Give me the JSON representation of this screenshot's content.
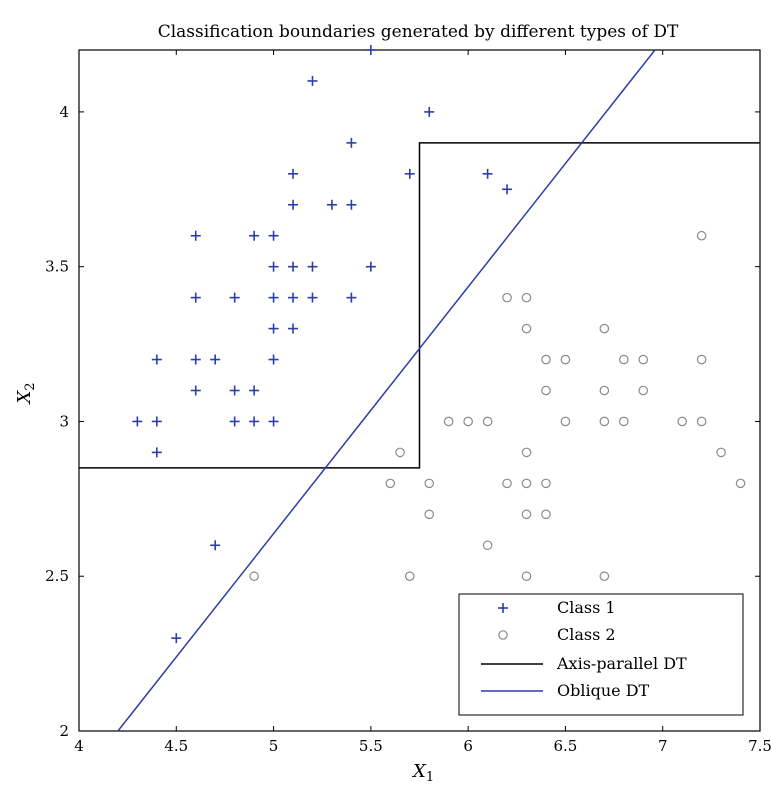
{
  "chart_data": {
    "type": "scatter",
    "title": "Classification boundaries generated by different types of DT",
    "xlabel": "X",
    "xlabel_sub": "1",
    "ylabel": "X",
    "ylabel_sub": "2",
    "xlim": [
      4,
      7.5
    ],
    "ylim": [
      2,
      4.2
    ],
    "xticks": [
      4,
      4.5,
      5,
      5.5,
      6,
      6.5,
      7,
      7.5
    ],
    "xtick_labels": [
      "4",
      "4.5",
      "5",
      "5.5",
      "6",
      "6.5",
      "7",
      "7.5"
    ],
    "yticks": [
      2,
      2.5,
      3,
      3.5,
      4
    ],
    "ytick_labels": [
      "2",
      "2.5",
      "3",
      "3.5",
      "4"
    ],
    "legend_position": "bottom-right",
    "colors": {
      "class1": "#2a3fa8",
      "class2": "#8a8a8a",
      "axis_parallel": "#000000",
      "oblique": "#2a3fa8"
    },
    "series": [
      {
        "name": "Class 1",
        "marker": "plus",
        "points": [
          [
            5.5,
            4.2
          ],
          [
            5.2,
            4.1
          ],
          [
            5.8,
            4.0
          ],
          [
            5.4,
            3.9
          ],
          [
            5.7,
            3.8
          ],
          [
            5.1,
            3.8
          ],
          [
            6.1,
            3.8
          ],
          [
            6.2,
            3.75
          ],
          [
            5.1,
            3.7
          ],
          [
            5.3,
            3.7
          ],
          [
            5.4,
            3.7
          ],
          [
            4.6,
            3.6
          ],
          [
            4.9,
            3.6
          ],
          [
            5.0,
            3.6
          ],
          [
            5.0,
            3.5
          ],
          [
            5.1,
            3.5
          ],
          [
            5.2,
            3.5
          ],
          [
            5.5,
            3.5
          ],
          [
            4.6,
            3.4
          ],
          [
            4.8,
            3.4
          ],
          [
            5.0,
            3.4
          ],
          [
            5.1,
            3.4
          ],
          [
            5.2,
            3.4
          ],
          [
            5.4,
            3.4
          ],
          [
            5.0,
            3.3
          ],
          [
            5.1,
            3.3
          ],
          [
            4.4,
            3.2
          ],
          [
            4.6,
            3.2
          ],
          [
            4.7,
            3.2
          ],
          [
            5.0,
            3.2
          ],
          [
            4.6,
            3.1
          ],
          [
            4.8,
            3.1
          ],
          [
            4.9,
            3.1
          ],
          [
            4.3,
            3.0
          ],
          [
            4.4,
            3.0
          ],
          [
            4.8,
            3.0
          ],
          [
            4.9,
            3.0
          ],
          [
            5.0,
            3.0
          ],
          [
            4.4,
            2.9
          ],
          [
            4.7,
            2.6
          ],
          [
            4.5,
            2.3
          ]
        ]
      },
      {
        "name": "Class 2",
        "marker": "circle",
        "points": [
          [
            7.2,
            3.6
          ],
          [
            6.2,
            3.4
          ],
          [
            6.3,
            3.4
          ],
          [
            6.3,
            3.3
          ],
          [
            6.7,
            3.3
          ],
          [
            6.4,
            3.2
          ],
          [
            6.5,
            3.2
          ],
          [
            6.8,
            3.2
          ],
          [
            6.9,
            3.2
          ],
          [
            7.2,
            3.2
          ],
          [
            6.4,
            3.1
          ],
          [
            6.7,
            3.1
          ],
          [
            6.9,
            3.1
          ],
          [
            5.9,
            3.0
          ],
          [
            6.0,
            3.0
          ],
          [
            6.1,
            3.0
          ],
          [
            6.5,
            3.0
          ],
          [
            6.7,
            3.0
          ],
          [
            6.8,
            3.0
          ],
          [
            7.1,
            3.0
          ],
          [
            7.2,
            3.0
          ],
          [
            5.65,
            2.9
          ],
          [
            6.3,
            2.9
          ],
          [
            7.3,
            2.9
          ],
          [
            5.6,
            2.8
          ],
          [
            5.8,
            2.8
          ],
          [
            6.2,
            2.8
          ],
          [
            6.3,
            2.8
          ],
          [
            6.4,
            2.8
          ],
          [
            7.4,
            2.8
          ],
          [
            5.8,
            2.7
          ],
          [
            6.3,
            2.7
          ],
          [
            6.4,
            2.7
          ],
          [
            6.1,
            2.6
          ],
          [
            4.9,
            2.5
          ],
          [
            5.7,
            2.5
          ],
          [
            6.3,
            2.5
          ],
          [
            6.7,
            2.5
          ]
        ]
      }
    ],
    "boundaries": [
      {
        "name": "Axis-parallel DT",
        "points": [
          [
            4.0,
            2.85
          ],
          [
            5.75,
            2.85
          ],
          [
            5.75,
            3.9
          ],
          [
            7.5,
            3.9
          ]
        ]
      },
      {
        "name": "Oblique DT",
        "points": [
          [
            4.2,
            2.0
          ],
          [
            6.96,
            4.2
          ]
        ]
      }
    ],
    "legend": [
      {
        "label": "Class 1",
        "kind": "plus"
      },
      {
        "label": "Class 2",
        "kind": "circle"
      },
      {
        "label": "Axis-parallel DT",
        "kind": "line-black"
      },
      {
        "label": "Oblique DT",
        "kind": "line-blue"
      }
    ]
  }
}
